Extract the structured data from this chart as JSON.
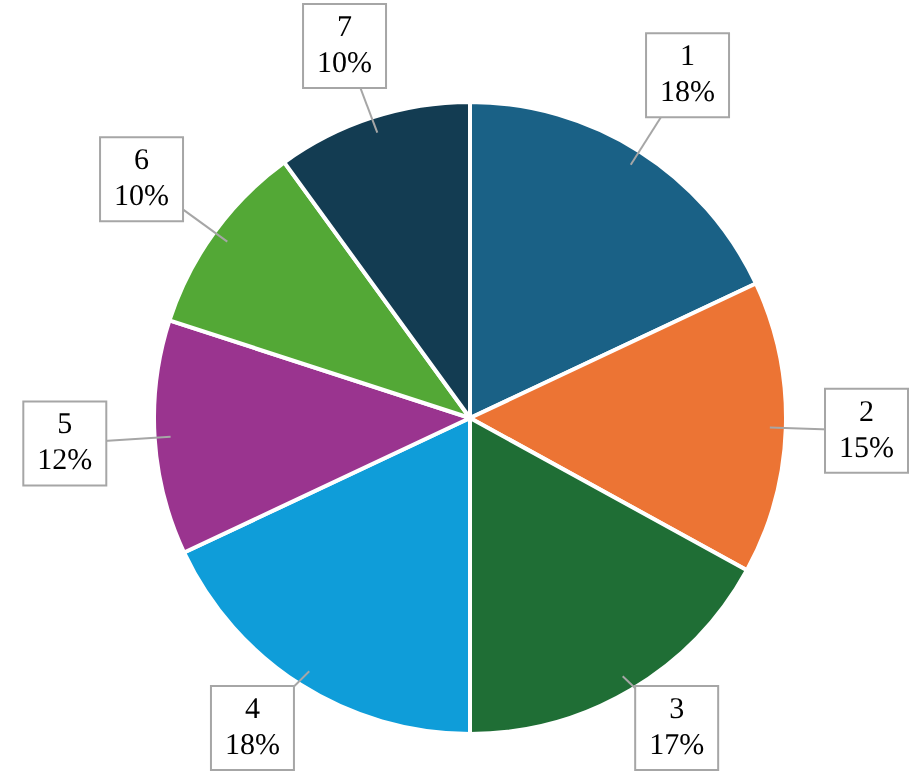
{
  "chart_data": {
    "type": "pie",
    "categories": [
      "1",
      "2",
      "3",
      "4",
      "5",
      "6",
      "7"
    ],
    "values": [
      18,
      15,
      17,
      18,
      12,
      10,
      10
    ],
    "colors": [
      "#1a6186",
      "#ec7434",
      "#1f6e35",
      "#0f9dd9",
      "#9a348f",
      "#53a836",
      "#133c52"
    ],
    "value_labels": [
      "18%",
      "15%",
      "17%",
      "18%",
      "12%",
      "10%",
      "10%"
    ],
    "legend": false
  }
}
